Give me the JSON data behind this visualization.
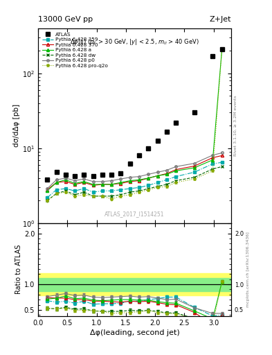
{
  "title_left": "13000 GeV pp",
  "title_right": "Z+Jet",
  "watermark": "ATLAS_2017_I1514251",
  "ylabel_main": "dσ/dΔφ [pb]",
  "ylabel_ratio": "Ratio to ATLAS",
  "xlabel": "Δφ(leading, second jet)",
  "right_label_main": "Rivet 3.1.10, ≥ 3.2M events",
  "right_label_ratio": "mcplots.cern.ch [arXiv:1306.3436]",
  "atlas_x": [
    0.157,
    0.314,
    0.471,
    0.628,
    0.785,
    0.942,
    1.099,
    1.256,
    1.413,
    1.571,
    1.728,
    1.885,
    2.042,
    2.199,
    2.356,
    2.67,
    2.984,
    3.14159
  ],
  "atlas_y": [
    3.8,
    4.8,
    4.4,
    4.3,
    4.4,
    4.3,
    4.4,
    4.4,
    4.6,
    6.2,
    8.1,
    9.9,
    12.5,
    16.5,
    22.0,
    30.0,
    170.0,
    210.0
  ],
  "x_mc": [
    0.157,
    0.314,
    0.471,
    0.628,
    0.785,
    0.942,
    1.099,
    1.256,
    1.413,
    1.571,
    1.728,
    1.885,
    2.042,
    2.199,
    2.356,
    2.67,
    2.984,
    3.14159
  ],
  "y_359": [
    2.2,
    2.8,
    2.9,
    2.7,
    2.9,
    2.6,
    2.7,
    2.7,
    2.8,
    2.9,
    3.0,
    3.2,
    3.5,
    3.8,
    4.2,
    4.8,
    6.2,
    6.5
  ],
  "y_370": [
    2.8,
    3.5,
    3.6,
    3.3,
    3.5,
    3.2,
    3.3,
    3.3,
    3.4,
    3.6,
    3.7,
    4.0,
    4.3,
    4.6,
    5.2,
    5.8,
    7.5,
    8.0
  ],
  "y_a": [
    2.7,
    3.5,
    3.8,
    3.4,
    3.6,
    3.3,
    3.3,
    3.3,
    3.5,
    3.7,
    3.8,
    4.0,
    4.3,
    4.5,
    5.0,
    5.5,
    7.0,
    210.0
  ],
  "y_dw": [
    2.0,
    2.5,
    2.7,
    2.4,
    2.6,
    2.3,
    2.3,
    2.3,
    2.4,
    2.6,
    2.7,
    2.9,
    3.1,
    3.3,
    3.7,
    4.1,
    5.3,
    5.7
  ],
  "y_p0": [
    2.9,
    3.8,
    4.0,
    3.7,
    3.9,
    3.6,
    3.6,
    3.7,
    3.9,
    4.1,
    4.2,
    4.5,
    4.8,
    5.1,
    5.7,
    6.3,
    8.1,
    8.7
  ],
  "y_q2o": [
    2.0,
    2.5,
    2.6,
    2.3,
    2.4,
    2.3,
    2.3,
    2.1,
    2.3,
    2.4,
    2.6,
    2.8,
    3.0,
    3.1,
    3.5,
    3.9,
    5.0,
    210.0
  ],
  "ratio_band_green_lo": 0.87,
  "ratio_band_green_hi": 1.13,
  "ratio_band_yellow_lo": 0.78,
  "ratio_band_yellow_hi": 1.22,
  "ratio_359": [
    0.68,
    0.65,
    0.67,
    0.63,
    0.67,
    0.61,
    0.62,
    0.62,
    0.63,
    0.67,
    0.67,
    0.7,
    0.72,
    0.75,
    0.75,
    0.55,
    0.38,
    0.4
  ],
  "ratio_370": [
    0.74,
    0.73,
    0.73,
    0.7,
    0.7,
    0.67,
    0.67,
    0.66,
    0.65,
    0.67,
    0.66,
    0.67,
    0.64,
    0.61,
    0.6,
    0.45,
    0.2,
    0.4
  ],
  "ratio_a": [
    0.71,
    0.73,
    0.77,
    0.72,
    0.73,
    0.69,
    0.68,
    0.69,
    0.7,
    0.7,
    0.69,
    0.69,
    0.66,
    0.64,
    0.63,
    0.48,
    0.32,
    1.05
  ],
  "ratio_dw": [
    0.53,
    0.52,
    0.55,
    0.51,
    0.52,
    0.48,
    0.47,
    0.47,
    0.47,
    0.49,
    0.48,
    0.49,
    0.47,
    0.44,
    0.44,
    0.33,
    0.22,
    0.28
  ],
  "ratio_p0": [
    0.76,
    0.79,
    0.82,
    0.78,
    0.79,
    0.75,
    0.74,
    0.75,
    0.76,
    0.77,
    0.75,
    0.76,
    0.73,
    0.7,
    0.71,
    0.54,
    0.43,
    0.43
  ],
  "ratio_q2o": [
    0.53,
    0.52,
    0.53,
    0.49,
    0.49,
    0.48,
    0.47,
    0.43,
    0.44,
    0.45,
    0.46,
    0.48,
    0.45,
    0.43,
    0.42,
    0.32,
    0.21,
    1.05
  ],
  "color_359": "#00AAAA",
  "color_370": "#CC0000",
  "color_a": "#00BB00",
  "color_dw": "#006600",
  "color_p0": "#777777",
  "color_proq2o": "#88AA00",
  "xlim": [
    0.0,
    3.3
  ],
  "ylim_main": [
    1.0,
    400.0
  ],
  "ylim_ratio": [
    0.38,
    2.2
  ],
  "ratio_yticks": [
    0.5,
    1.0,
    2.0
  ]
}
